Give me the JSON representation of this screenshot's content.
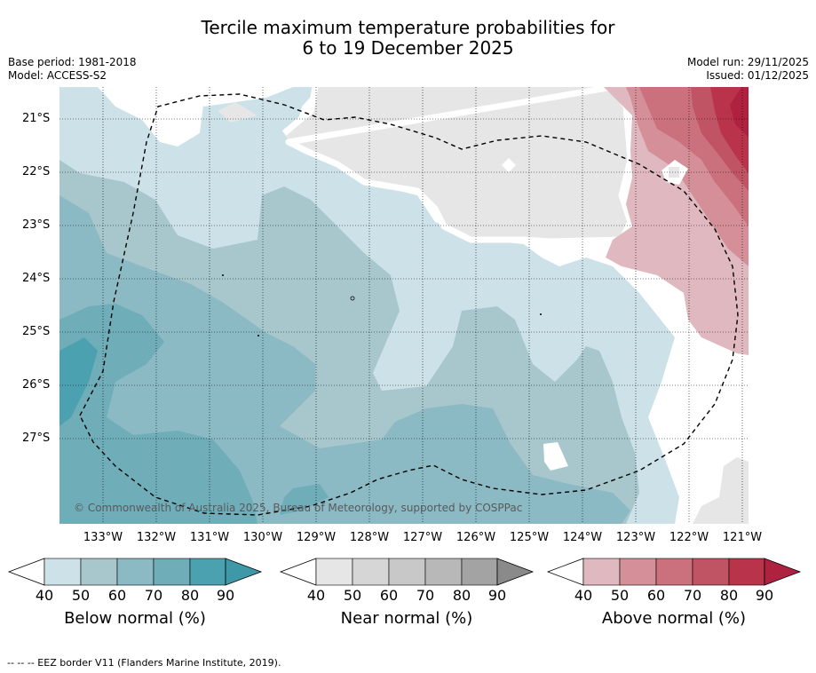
{
  "title_line1": "Tercile maximum temperature probabilities for",
  "title_line2": "6 to 19 December 2025",
  "base_period": "Base period: 1981-2018",
  "model": "Model: ACCESS-S2",
  "model_run": "Model run: 29/11/2025",
  "issued": "Issued: 01/12/2025",
  "copyright": "© Commonwealth of Australia 2025, Bureau of Meteorology, supported by COSPPac",
  "footer": "-- -- -- EEZ border V11 (Flanders Marine Institute, 2019).",
  "lat_labels": [
    "21°S",
    "22°S",
    "23°S",
    "24°S",
    "25°S",
    "26°S",
    "27°S"
  ],
  "lon_labels": [
    "133°W",
    "132°W",
    "131°W",
    "130°W",
    "129°W",
    "128°W",
    "127°W",
    "126°W",
    "125°W",
    "124°W",
    "123°W",
    "122°W",
    "121°W"
  ],
  "colorbars": [
    {
      "label": "Below normal (%)",
      "ticks": [
        "40",
        "50",
        "60",
        "70",
        "80",
        "90"
      ],
      "colors": [
        "#cce2e8",
        "#a8c7cc",
        "#8bb9c4",
        "#6fadb9",
        "#4ca1b0"
      ],
      "extend": "#3e98a8"
    },
    {
      "label": "Near normal (%)",
      "ticks": [
        "40",
        "50",
        "60",
        "70",
        "80",
        "90"
      ],
      "colors": [
        "#e6e6e6",
        "#d6d6d6",
        "#c8c8c8",
        "#b8b8b8",
        "#a3a3a3"
      ],
      "extend": "#8a8a8a"
    },
    {
      "label": "Above normal (%)",
      "ticks": [
        "40",
        "50",
        "60",
        "70",
        "80",
        "90"
      ],
      "colors": [
        "#e0b8bf",
        "#d48f98",
        "#ca717d",
        "#c15464",
        "#b9344a"
      ],
      "extend": "#ae2240"
    }
  ]
}
